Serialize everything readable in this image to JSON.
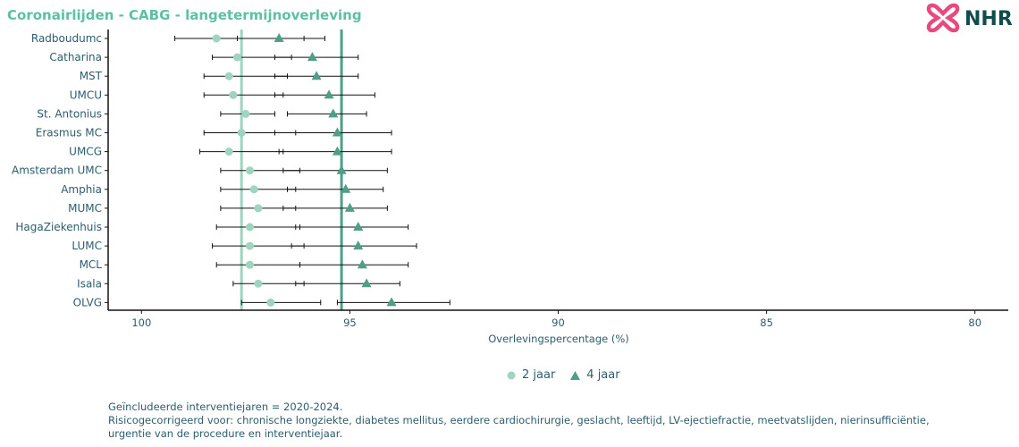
{
  "title": "Coronairlijden - CABG - langetermijnoverleving",
  "logo_text": "NHR",
  "colors": {
    "title": "#5cc0a3",
    "series_2jaar": "#9fd4c0",
    "series_4jaar": "#4e9e88",
    "label_text": "#2d5d6e",
    "logo_pink": "#e84a7f",
    "logo_dark": "#0f4c4c"
  },
  "chart_data": {
    "type": "scatter",
    "variant": "dot-plot-with-confidence-intervals",
    "xlabel": "Overlevingspercentage (%)",
    "x_reversed": true,
    "xlim": [
      100.8,
      79.2
    ],
    "x_ticks": [
      "100",
      "95",
      "90",
      "85",
      "80"
    ],
    "x_tick_values": [
      100,
      95,
      90,
      85,
      80
    ],
    "categories": [
      "Radboudumc",
      "Catharina",
      "MST",
      "UMCU",
      "St. Antonius",
      "Erasmus MC",
      "UMCG",
      "Amsterdam UMC",
      "Amphia",
      "MUMC",
      "HagaZiekenhuis",
      "LUMC",
      "MCL",
      "Isala",
      "OLVG"
    ],
    "series": [
      {
        "name": "2 jaar",
        "marker": "circle",
        "reference_line": 97.6,
        "values": [
          98.2,
          97.7,
          97.9,
          97.8,
          97.5,
          97.6,
          97.9,
          97.4,
          97.3,
          97.2,
          97.4,
          97.4,
          97.4,
          97.2,
          96.9
        ],
        "lower": [
          96.1,
          96.4,
          96.5,
          96.6,
          96.8,
          96.3,
          96.6,
          96.2,
          96.3,
          96.3,
          96.2,
          96.1,
          96.2,
          96.1,
          95.7
        ],
        "upper": [
          99.2,
          98.3,
          98.5,
          98.5,
          98.1,
          98.5,
          98.6,
          98.1,
          98.1,
          98.1,
          98.2,
          98.3,
          98.2,
          97.8,
          97.6
        ]
      },
      {
        "name": "4 jaar",
        "marker": "triangle",
        "reference_line": 95.2,
        "values": [
          96.7,
          95.9,
          95.8,
          95.5,
          95.4,
          95.3,
          95.3,
          95.2,
          95.1,
          95.0,
          94.8,
          94.8,
          94.7,
          94.6,
          94.0
        ],
        "lower": [
          95.6,
          94.8,
          94.8,
          94.4,
          94.6,
          94.0,
          94.0,
          94.1,
          94.2,
          94.1,
          93.6,
          93.4,
          93.6,
          93.8,
          92.6
        ],
        "upper": [
          97.7,
          96.8,
          96.8,
          96.8,
          96.5,
          96.8,
          96.7,
          96.6,
          96.5,
          96.6,
          96.3,
          96.4,
          96.2,
          96.3,
          95.3
        ]
      }
    ],
    "legend_position": "bottom",
    "grid": false
  },
  "footnote": {
    "line1": "Geïncludeerde interventiejaren = 2020-2024.",
    "line2": "Risicogecorrigeerd voor: chronische longziekte, diabetes mellitus, eerdere cardiochirurgie, geslacht, leeftijd, LV-ejectiefractie, meetvatslijden, nierinsufficiëntie,",
    "line3": "urgentie van de procedure en interventiejaar."
  }
}
